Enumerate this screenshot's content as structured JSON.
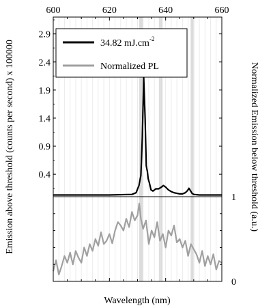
{
  "chart_data": [
    {
      "type": "line",
      "panel": "top",
      "xlabel": "Wavelength (nm)",
      "ylabel": "Emission above threshold (counts per second)  x 100000",
      "xlim": [
        600,
        660
      ],
      "ylim": [
        0,
        3.2
      ],
      "xticks": [
        "600",
        "620",
        "640",
        "660"
      ],
      "yticks": [
        "0.4",
        "0.9",
        "1.4",
        "1.9",
        "2.4",
        "2.9"
      ],
      "grid": "vertical",
      "legend_position": "top-center",
      "shaded_bands": [
        [
          630.6,
          631.9
        ],
        [
          637.6,
          638.9
        ],
        [
          648.9,
          650.2
        ]
      ],
      "series": [
        {
          "name": "34.82  mJ.cm⁻²",
          "label_main": "34.82  mJ.cm",
          "label_sup": "-2",
          "color": "#000000",
          "x": [
            600,
            620,
            628,
            629.5,
            630.5,
            631.2,
            631.7,
            632.2,
            632.7,
            633.1,
            633.5,
            633.8,
            634.2,
            634.8,
            635.5,
            636.5,
            637.5,
            638.5,
            639.2,
            640,
            641,
            642,
            643,
            644,
            645,
            646,
            647,
            647.8,
            648.3,
            648.8,
            649.4,
            650,
            652,
            655,
            660
          ],
          "values": [
            0.03,
            0.03,
            0.04,
            0.07,
            0.2,
            0.38,
            1.05,
            2.12,
            1.4,
            0.55,
            0.45,
            0.32,
            0.25,
            0.12,
            0.1,
            0.14,
            0.14,
            0.17,
            0.2,
            0.17,
            0.12,
            0.09,
            0.07,
            0.06,
            0.05,
            0.05,
            0.07,
            0.11,
            0.15,
            0.11,
            0.06,
            0.04,
            0.03,
            0.03,
            0.03
          ]
        }
      ]
    },
    {
      "type": "line",
      "panel": "bottom",
      "ylabel": "Normalized Emission below threshold (a.u.)",
      "xlim": [
        600,
        660
      ],
      "ylim": [
        0,
        1
      ],
      "yticks": [
        "0",
        "1"
      ],
      "series": [
        {
          "name": "Normalized PL",
          "color": "#a0a0a0",
          "x": [
            600,
            601,
            602,
            603,
            604,
            605,
            606,
            607,
            608,
            609,
            610,
            611,
            612,
            613,
            614,
            615,
            616,
            617,
            618,
            619,
            620,
            621,
            622,
            623,
            624,
            625,
            626,
            627,
            628,
            629,
            630,
            630.6,
            631.2,
            632,
            633,
            634,
            635,
            636,
            637,
            638,
            639,
            640,
            641,
            642,
            643,
            644,
            645,
            646,
            647,
            648,
            649,
            650,
            651,
            652,
            653,
            654,
            655,
            656,
            657,
            658,
            659,
            660
          ],
          "values": [
            0.12,
            0.25,
            0.08,
            0.18,
            0.3,
            0.22,
            0.34,
            0.2,
            0.36,
            0.28,
            0.22,
            0.4,
            0.3,
            0.44,
            0.36,
            0.5,
            0.42,
            0.58,
            0.44,
            0.48,
            0.56,
            0.45,
            0.6,
            0.7,
            0.66,
            0.6,
            0.74,
            0.64,
            0.82,
            0.72,
            0.78,
            0.92,
            0.74,
            0.62,
            0.72,
            0.44,
            0.6,
            0.52,
            0.7,
            0.48,
            0.56,
            0.4,
            0.6,
            0.54,
            0.66,
            0.46,
            0.5,
            0.4,
            0.48,
            0.3,
            0.44,
            0.38,
            0.32,
            0.22,
            0.36,
            0.18,
            0.3,
            0.2,
            0.32,
            0.14,
            0.24,
            0.22
          ]
        }
      ]
    }
  ]
}
